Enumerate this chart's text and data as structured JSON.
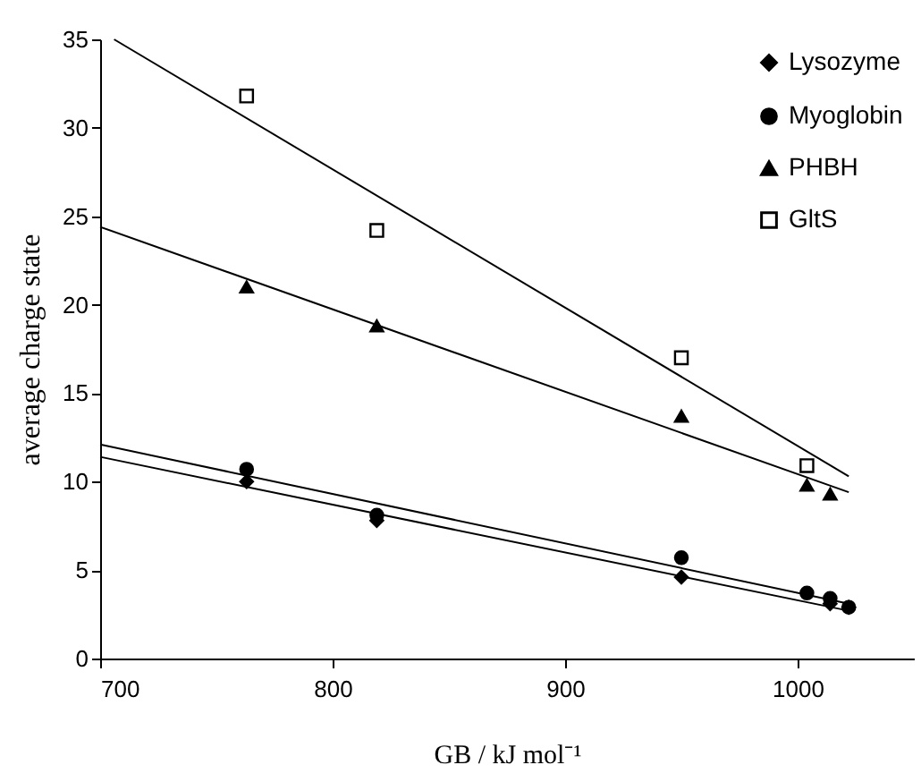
{
  "chart_data": {
    "type": "scatter",
    "xlabel": "GB / kJ mol⁻¹",
    "ylabel": "average charge state",
    "xlim": [
      700,
      1050
    ],
    "xticks": [
      700,
      800,
      900,
      1000
    ],
    "ylim": [
      0,
      35
    ],
    "yticks": [
      0,
      5,
      10,
      15,
      20,
      25,
      30,
      35
    ],
    "grid": false,
    "legend": "top right",
    "series": [
      {
        "name": "Lysozyme",
        "color": "#000000",
        "marker": "diamond",
        "x": [
          763,
          819,
          950,
          1004,
          1014,
          1022
        ],
        "values": [
          10.0,
          7.8,
          4.6,
          null,
          3.1,
          2.9
        ]
      },
      {
        "name": "Myoglobin",
        "color": "#000000",
        "marker": "circle",
        "x": [
          763,
          819,
          950,
          1004,
          1014,
          1022
        ],
        "values": [
          10.7,
          8.1,
          5.7,
          3.7,
          3.4,
          2.9
        ]
      },
      {
        "name": "PHBH",
        "color": "#000000",
        "marker": "triangle",
        "x": [
          763,
          819,
          950,
          1004,
          1014
        ],
        "values": [
          21.0,
          18.8,
          13.7,
          9.8,
          9.3
        ]
      },
      {
        "name": "GltS",
        "color": "#000000",
        "marker": "square",
        "x": [
          763,
          819,
          950,
          1004
        ],
        "values": [
          31.8,
          24.2,
          17.0,
          10.9
        ]
      },
      {
        "type": "line",
        "color": "#000000",
        "marker": "none",
        "x": [
          706,
          1022
        ],
        "values": [
          35.0,
          10.3
        ]
      },
      {
        "type": "line",
        "color": "#000000",
        "marker": "none",
        "x": [
          700,
          1022
        ],
        "values": [
          24.4,
          9.4
        ]
      },
      {
        "type": "line",
        "color": "#000000",
        "marker": "none",
        "x": [
          700,
          1022
        ],
        "values": [
          12.1,
          3.1
        ]
      },
      {
        "type": "line",
        "color": "#000000",
        "marker": "none",
        "x": [
          700,
          1022
        ],
        "values": [
          11.4,
          2.7
        ]
      }
    ]
  }
}
